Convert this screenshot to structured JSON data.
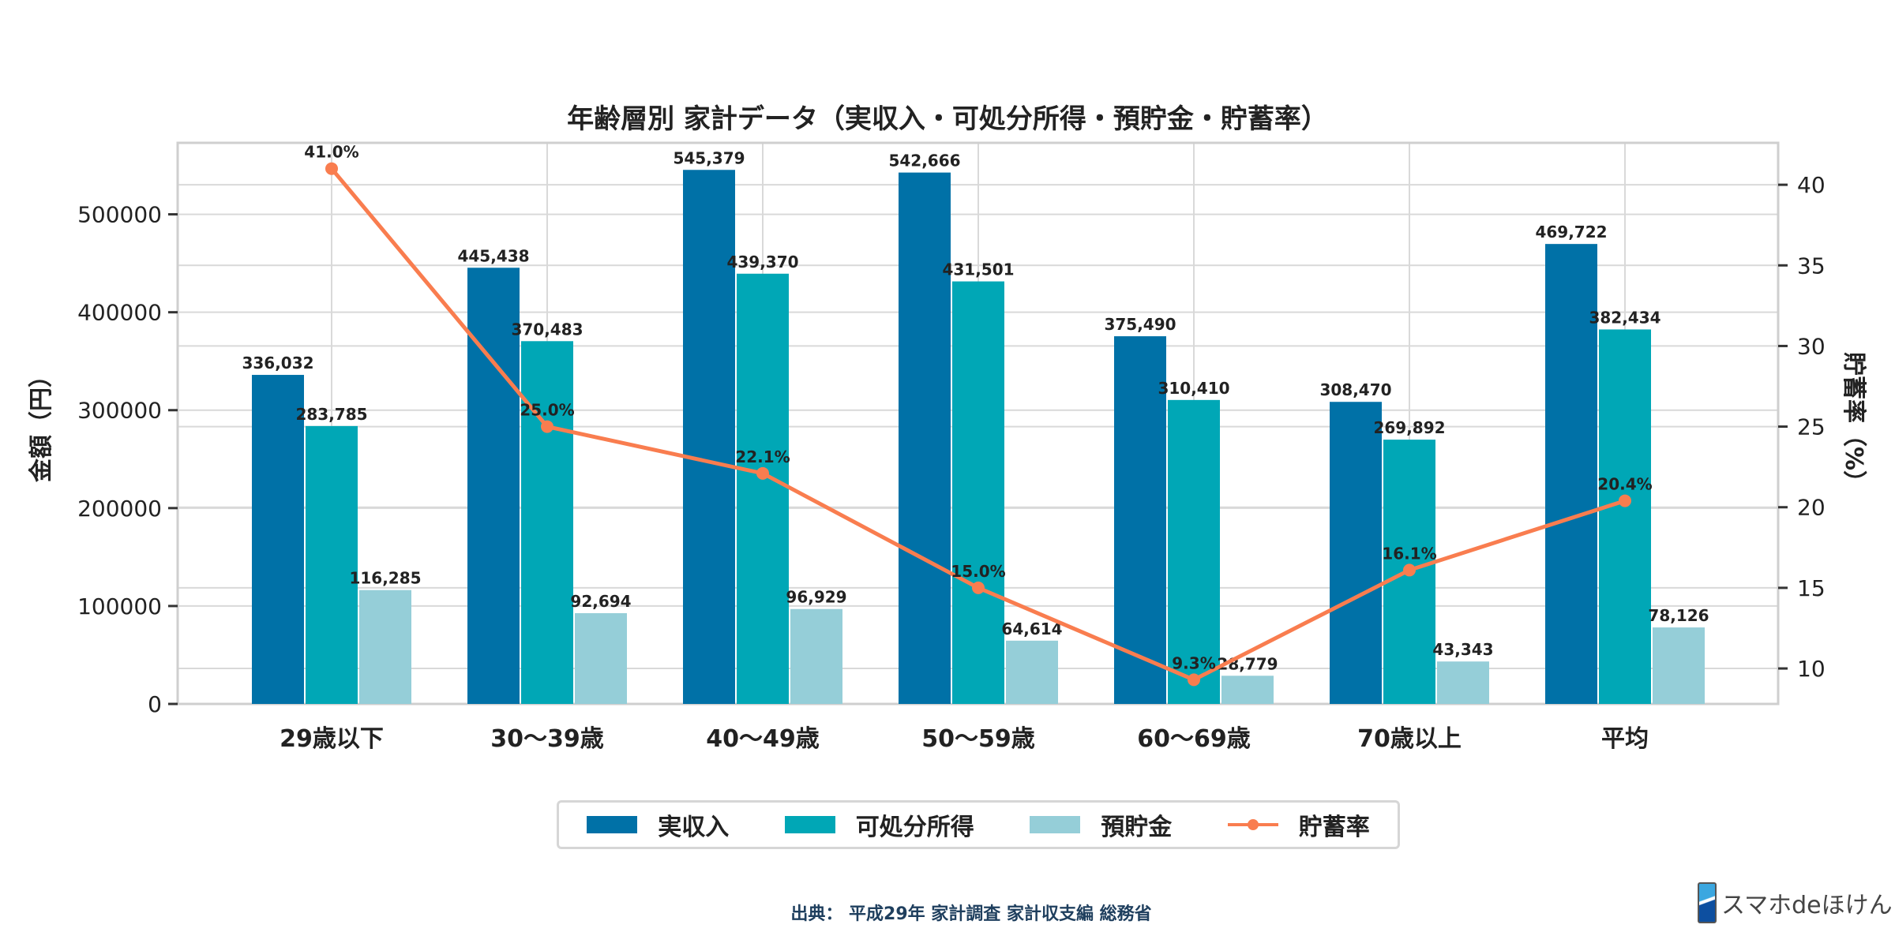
{
  "chart_data": {
    "type": "bar",
    "title": "年齢層別 家計データ（実収入・可処分所得・預貯金・貯蓄率）",
    "categories": [
      "29歳以下",
      "30〜39歳",
      "40〜49歳",
      "50〜59歳",
      "60〜69歳",
      "70歳以上",
      "平均"
    ],
    "ylabel": "金額（円）",
    "y2label": "貯蓄率（%）",
    "ylim": [
      0,
      573000
    ],
    "y2lim": [
      7.8,
      42.6
    ],
    "yticks": [
      0,
      100000,
      200000,
      300000,
      400000,
      500000
    ],
    "y2ticks": [
      10,
      15,
      20,
      25,
      30,
      35,
      40
    ],
    "grid": true,
    "legend_position": "bottom-center",
    "series": [
      {
        "name": "実収入",
        "kind": "bar",
        "color": "#0071a7",
        "values": [
          336032,
          445438,
          545379,
          542666,
          375490,
          308470,
          469722
        ],
        "labels": [
          "336,032",
          "445,438",
          "545,379",
          "542,666",
          "375,490",
          "308,470",
          "469,722"
        ]
      },
      {
        "name": "可処分所得",
        "kind": "bar",
        "color": "#00a7b6",
        "values": [
          283785,
          370483,
          439370,
          431501,
          310410,
          269892,
          382434
        ],
        "labels": [
          "283,785",
          "370,483",
          "439,370",
          "431,501",
          "310,410",
          "269,892",
          "382,434"
        ]
      },
      {
        "name": "預貯金",
        "kind": "bar",
        "color": "#95ced8",
        "values": [
          116285,
          92694,
          96929,
          64614,
          28779,
          43343,
          78126
        ],
        "labels": [
          "116,285",
          "92,694",
          "96,929",
          "64,614",
          "28,779",
          "43,343",
          "78,126"
        ]
      },
      {
        "name": "貯蓄率",
        "kind": "line",
        "axis": "right",
        "color": "#f97d4f",
        "values": [
          41.0,
          25.0,
          22.1,
          15.0,
          9.3,
          16.1,
          20.4
        ],
        "labels": [
          "41.0%",
          "25.0%",
          "22.1%",
          "15.0%",
          "9.3%",
          "16.1%",
          "20.4%"
        ]
      }
    ]
  },
  "source": "出典：  平成29年 家計調査 家計収支編 総務省",
  "logo": "スマホdeほけん"
}
